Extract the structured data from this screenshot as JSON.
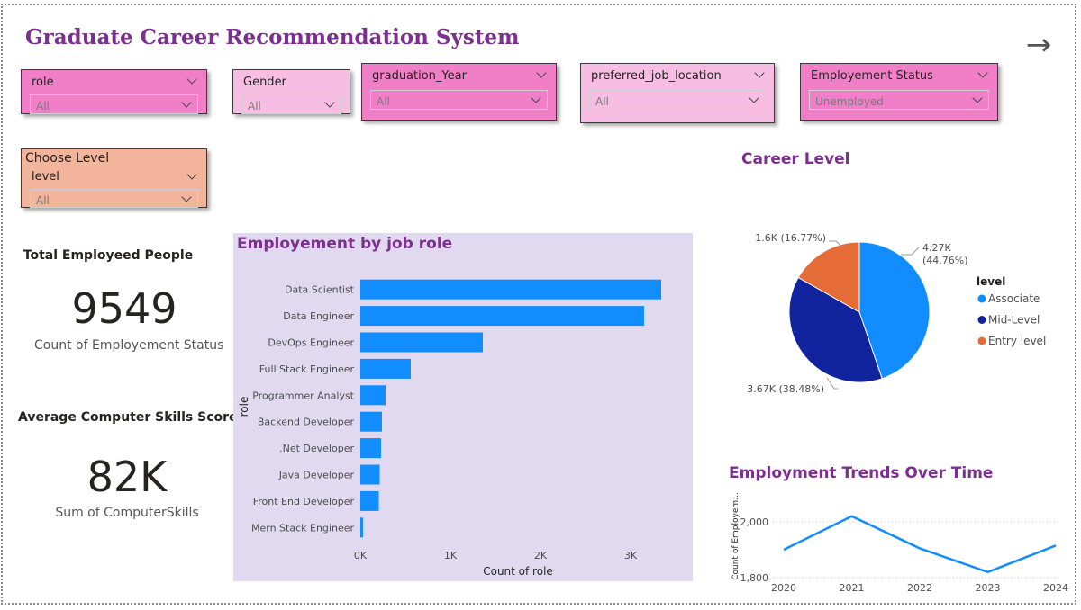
{
  "title": "Graduate Career Recommendation System",
  "nav": {
    "next_icon": "arrow-right-icon",
    "glyph": "→"
  },
  "slicers": {
    "role": {
      "label": "role",
      "value": "All"
    },
    "gender": {
      "label": "Gender",
      "value": "All"
    },
    "graduation_year": {
      "label": "graduation_Year",
      "value": "All"
    },
    "preferred_job_location": {
      "label": "preferred_job_location",
      "value": "All"
    },
    "employment_status": {
      "label": "Employement Status",
      "value": "Unemployed"
    },
    "level": {
      "header": "Choose Level",
      "label": "level",
      "value": "All"
    }
  },
  "colors": {
    "title": "#7b2f8e",
    "slicer_pink": "#f07fc8",
    "slicer_light_pink": "#f7bde2",
    "slicer_peach": "#f2b49b",
    "bar": "#118dff",
    "panel": "#e0d9ef",
    "associate": "#118dff",
    "mid_level": "#12239e",
    "entry_level": "#e66c37"
  },
  "kpis": {
    "employed": {
      "label": "Total Employeed People",
      "value": "9549",
      "caption": "Count of Employement Status"
    },
    "skills": {
      "label": "Average Computer Skills Score",
      "value": "82K",
      "caption": "Sum of ComputerSkills"
    }
  },
  "chart_data": [
    {
      "type": "bar",
      "orientation": "horizontal",
      "title": "Employement by job role",
      "xlabel": "Count of role",
      "ylabel": "role",
      "categories": [
        "Data Scientist",
        "Data Engineer",
        "DevOps Engineer",
        "Full Stack Engineer",
        "Programmer Analyst",
        "Backend Developer",
        ".Net Developer",
        "Java Developer",
        "Front End Developer",
        "Mern Stack Engineer"
      ],
      "values": [
        3340,
        3150,
        1360,
        560,
        280,
        240,
        230,
        215,
        205,
        30
      ],
      "xlim": [
        0,
        3500
      ],
      "xticks": [
        0,
        1000,
        2000,
        3000
      ],
      "xtick_labels": [
        "0K",
        "1K",
        "2K",
        "3K"
      ],
      "grid": false
    },
    {
      "type": "pie",
      "title": "Career Level",
      "legend_title": "level",
      "legend_position": "right",
      "slices": [
        {
          "name": "Associate",
          "value": 4270,
          "percent": 44.76,
          "label": "4.27K (44.76%)"
        },
        {
          "name": "Mid-Level",
          "value": 3670,
          "percent": 38.48,
          "label": "3.67K (38.48%)"
        },
        {
          "name": "Entry level",
          "value": 1600,
          "percent": 16.77,
          "label": "1.6K (16.77%)"
        }
      ]
    },
    {
      "type": "line",
      "title": "Employment Trends Over Time",
      "ylabel": "Count of Employem...",
      "x": [
        "2020",
        "2021",
        "2022",
        "2023",
        "2024"
      ],
      "values": [
        1900,
        2020,
        1905,
        1820,
        1915
      ],
      "ylim": [
        1800,
        2100
      ],
      "yticks": [
        1800,
        2000
      ],
      "ytick_labels": [
        "1,800",
        "2,000"
      ],
      "grid": true
    }
  ]
}
